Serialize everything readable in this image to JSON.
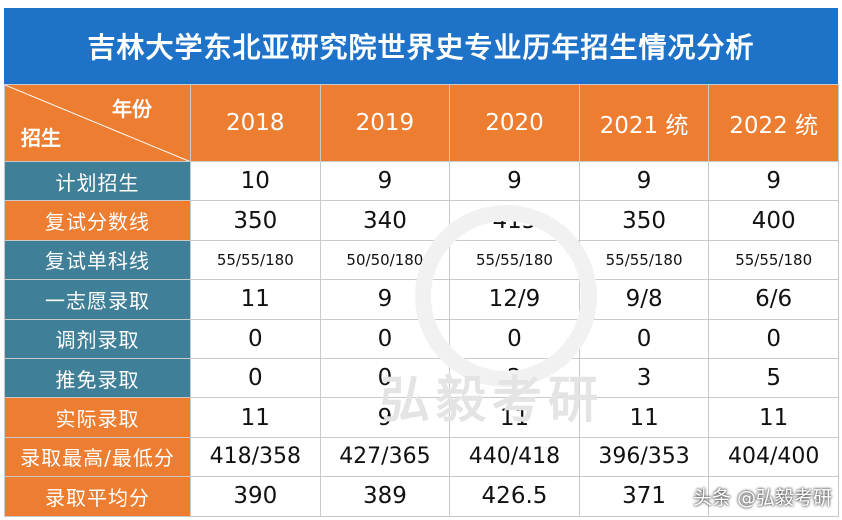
{
  "title": "吉林大学东北亚研究院世界史专业历年招生情况分析",
  "corner": {
    "top": "年份",
    "bottom": "招生"
  },
  "years": [
    "2018",
    "2019",
    "2020",
    "2021 统",
    "2022 统"
  ],
  "rows": [
    {
      "label": "计划招生",
      "values": [
        "10",
        "9",
        "9",
        "9",
        "9"
      ]
    },
    {
      "label": "复试分数线",
      "values": [
        "350",
        "340",
        "415",
        "350",
        "400"
      ]
    },
    {
      "label": "复试单科线",
      "values": [
        "55/55/180",
        "50/50/180",
        "55/55/180",
        "55/55/180",
        "55/55/180"
      ]
    },
    {
      "label": "一志愿录取",
      "values": [
        "11",
        "9",
        "12/9",
        "9/8",
        "6/6"
      ]
    },
    {
      "label": "调剂录取",
      "values": [
        "0",
        "0",
        "0",
        "0",
        "0"
      ]
    },
    {
      "label": "推免录取",
      "values": [
        "0",
        "0",
        "2",
        "3",
        "5"
      ]
    },
    {
      "label": "实际录取",
      "values": [
        "11",
        "9",
        "11",
        "11",
        "11"
      ]
    },
    {
      "label": "录取最高/最低分",
      "values": [
        "418/358",
        "427/365",
        "440/418",
        "396/353",
        "404/400"
      ]
    },
    {
      "label": "录取平均分",
      "values": [
        "390",
        "389",
        "426.5",
        "371",
        ""
      ]
    }
  ],
  "watermark": "弘毅考研",
  "credit": "头条 @弘毅考研",
  "colors": {
    "title_bg": "#1e73c8",
    "orange": "#ed7d31",
    "teal": "#3f7f97"
  }
}
